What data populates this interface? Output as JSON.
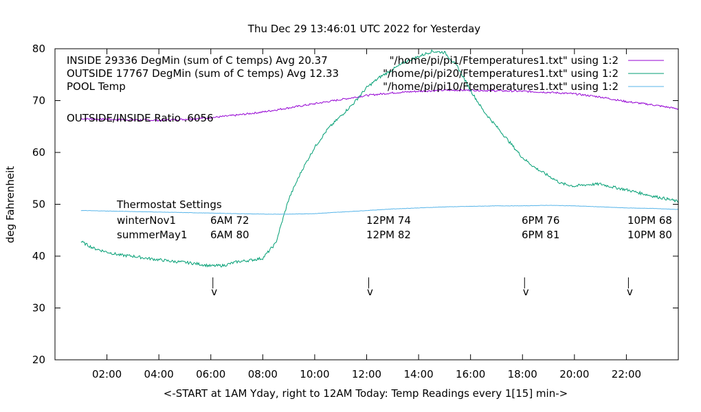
{
  "chart_data": {
    "type": "line",
    "title": "Thu Dec 29 13:46:01 UTC 2022 for Yesterday",
    "xlabel": "<-START at 1AM Yday, right to 12AM Today:  Temp Readings every 1[15] min->",
    "ylabel": "deg Fahrenheit",
    "xlim": [
      0,
      24
    ],
    "ylim": [
      20,
      80
    ],
    "y_ticks": [
      20,
      30,
      40,
      50,
      60,
      70,
      80
    ],
    "x_ticks": [
      {
        "x": 2,
        "label": "02:00"
      },
      {
        "x": 4,
        "label": "04:00"
      },
      {
        "x": 6,
        "label": "06:00"
      },
      {
        "x": 8,
        "label": "08:00"
      },
      {
        "x": 10,
        "label": "10:00"
      },
      {
        "x": 12,
        "label": "12:00"
      },
      {
        "x": 14,
        "label": "14:00"
      },
      {
        "x": 16,
        "label": "16:00"
      },
      {
        "x": 18,
        "label": "18:00"
      },
      {
        "x": 20,
        "label": "20:00"
      },
      {
        "x": 22,
        "label": "22:00"
      }
    ],
    "grid": false,
    "legend_position": "top-right",
    "series": [
      {
        "name": "\"/home/pi/pi1/Ftemperatures1.txt\" using 1:2",
        "color": "#9400d3",
        "x": [
          1,
          2,
          3,
          4,
          5,
          6,
          7,
          8,
          9,
          10,
          11,
          12,
          13,
          14,
          15,
          16,
          17,
          18,
          19,
          20,
          21,
          22,
          23,
          24
        ],
        "y": [
          66.5,
          66.4,
          66.3,
          66.2,
          66.4,
          66.7,
          67.2,
          67.8,
          68.6,
          69.4,
          70.2,
          71.0,
          71.5,
          71.8,
          72.0,
          72.0,
          71.9,
          71.8,
          71.6,
          71.3,
          70.7,
          69.8,
          69.2,
          68.4
        ]
      },
      {
        "name": "\"/home/pi/pi20/Ftemperatures1.txt\" using 1:2",
        "color": "#009e73",
        "x": [
          1,
          1.5,
          2,
          2.5,
          3,
          3.5,
          4,
          4.5,
          5,
          5.5,
          6,
          6.5,
          7,
          7.5,
          8,
          8.5,
          9,
          9.5,
          10,
          10.5,
          11,
          11.5,
          12,
          12.5,
          13,
          13.5,
          14,
          14.5,
          15,
          15.5,
          16,
          16.5,
          17,
          17.5,
          18,
          18.5,
          19,
          19.5,
          20,
          20.5,
          21,
          21.5,
          22,
          22.5,
          23,
          23.5,
          24
        ],
        "y": [
          42.8,
          41.5,
          40.8,
          40.2,
          40.0,
          39.6,
          39.3,
          39.0,
          38.8,
          38.5,
          38.1,
          38.2,
          38.9,
          39.2,
          39.6,
          42.5,
          51.0,
          56.5,
          61.0,
          64.5,
          67.0,
          69.5,
          72.5,
          74.5,
          76.0,
          77.5,
          78.5,
          79.5,
          79.3,
          76.5,
          72.0,
          68.0,
          65.0,
          62.0,
          59.0,
          57.0,
          55.5,
          54.0,
          53.5,
          53.8,
          53.9,
          53.3,
          52.8,
          52.2,
          51.6,
          51.1,
          50.5
        ]
      },
      {
        "name": "\"/home/pi/pi10/Ftemperatures1.txt\" using 1:2",
        "color": "#56b4e9",
        "x": [
          1,
          2,
          3,
          4,
          5,
          6,
          7,
          8,
          9,
          10,
          11,
          12,
          13,
          14,
          15,
          16,
          17,
          18,
          19,
          20,
          21,
          22,
          23,
          24
        ],
        "y": [
          48.8,
          48.7,
          48.6,
          48.5,
          48.4,
          48.3,
          48.2,
          48.1,
          48.1,
          48.2,
          48.5,
          48.8,
          49.1,
          49.3,
          49.5,
          49.6,
          49.7,
          49.7,
          49.8,
          49.7,
          49.5,
          49.3,
          49.2,
          49.0
        ]
      }
    ],
    "annotations": {
      "legend_left": [
        "INSIDE 29336 DegMin (sum of C temps) Avg 20.37",
        "OUTSIDE 17767 DegMin (sum of C temps) Avg 12.33",
        "POOL Temp"
      ],
      "ratio": "OUTSIDE/INSIDE Ratio .6056",
      "thermostat_title": "Thermostat Settings",
      "schedules": [
        {
          "name": "winterNov1",
          "settings": [
            "6AM 72",
            "12PM 74",
            "6PM 76",
            "10PM 68"
          ]
        },
        {
          "name": "summerMay1",
          "settings": [
            "6AM 80",
            "12PM 82",
            "6PM 81",
            "10PM 80"
          ]
        }
      ],
      "markers": [
        {
          "x": 6,
          "label": "v"
        },
        {
          "x": 12,
          "label": "v"
        },
        {
          "x": 18,
          "label": "v"
        },
        {
          "x": 22,
          "label": "v"
        }
      ]
    }
  }
}
